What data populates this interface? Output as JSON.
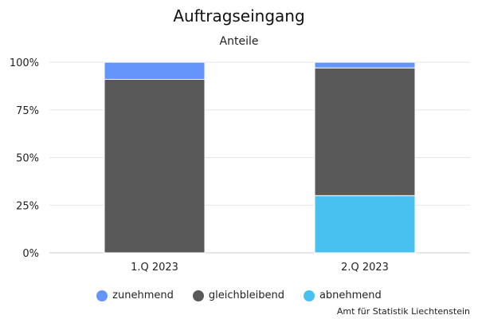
{
  "chart_data": {
    "type": "bar",
    "stacked": true,
    "title": "Auftragseingang",
    "subtitle": "Anteile",
    "categories": [
      "1.Q 2023",
      "2.Q 2023"
    ],
    "series": [
      {
        "name": "abnehmend",
        "color": "#48c1f0",
        "values": [
          0,
          30
        ]
      },
      {
        "name": "gleichbleibend",
        "color": "#595959",
        "values": [
          91,
          67
        ]
      },
      {
        "name": "zunehmend",
        "color": "#6495fa",
        "values": [
          9,
          3
        ]
      }
    ],
    "yticks": [
      "0%",
      "25%",
      "50%",
      "75%",
      "100%"
    ],
    "ylim": [
      0,
      100
    ],
    "grid": true,
    "legend_position": "bottom",
    "legend_order": [
      "zunehmend",
      "gleichbleibend",
      "abnehmend"
    ]
  },
  "credit": "Amt für Statistik Liechtenstein"
}
